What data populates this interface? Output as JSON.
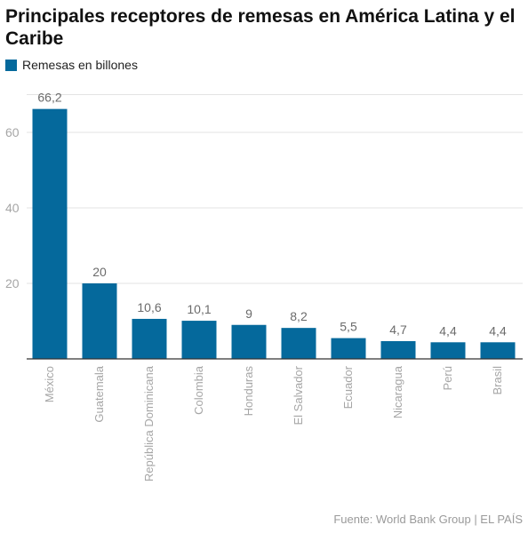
{
  "header": {
    "title": "Principales receptores de remesas en América Latina y el Caribe"
  },
  "footer": {
    "source": "Fuente: World Bank Group | EL PAÍS"
  },
  "colors": {
    "bar": "#05699c",
    "grid": "#e3e3e3",
    "tick_text": "#a6a6a6",
    "label_text": "#6b6b6b",
    "axis": "#333333"
  },
  "chart_data": {
    "type": "bar",
    "categories": [
      "México",
      "Guatemala",
      "República Dominicana",
      "Colombia",
      "Honduras",
      "El Salvador",
      "Ecuador",
      "Nicaragua",
      "Perú",
      "Brasil"
    ],
    "series": [
      {
        "name": "Remesas en billones",
        "values": [
          66.2,
          20,
          10.6,
          10.1,
          9,
          8.2,
          5.5,
          4.7,
          4.4,
          4.4
        ],
        "labels": [
          "66,2",
          "20",
          "10,6",
          "10,1",
          "9",
          "8,2",
          "5,5",
          "4,7",
          "4,4",
          "4,4"
        ]
      }
    ],
    "ylim": [
      0,
      70
    ],
    "yticks": [
      20,
      40,
      60
    ],
    "grid": true,
    "legend_position": "top-left",
    "xlabel": "",
    "ylabel": ""
  }
}
